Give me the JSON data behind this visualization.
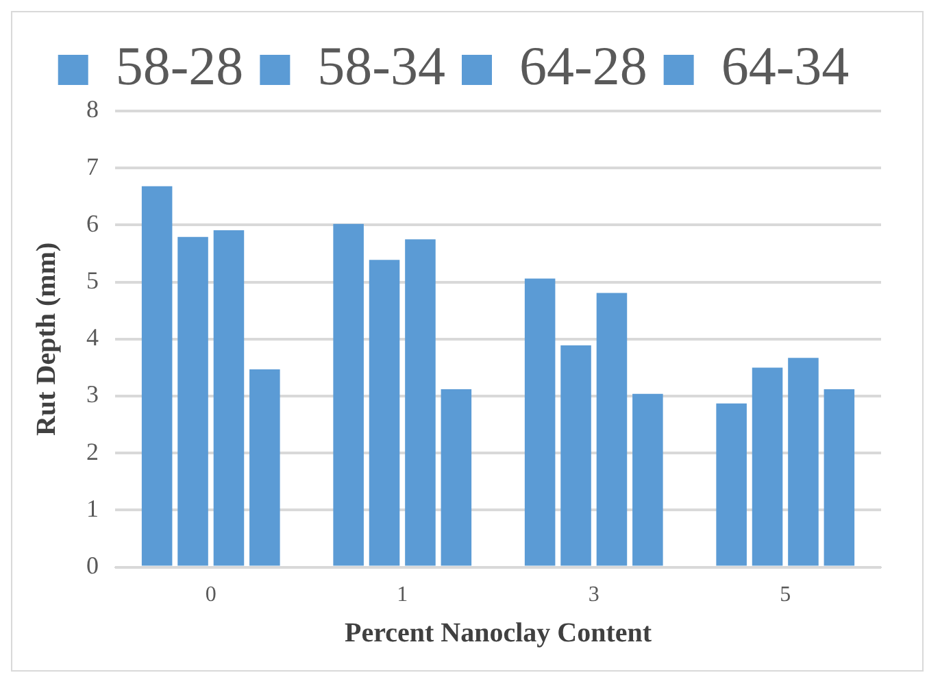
{
  "chart_data": {
    "type": "bar",
    "xlabel": "Percent Nanoclay Content",
    "ylabel": "Rut Depth (mm)",
    "categories": [
      "0",
      "1",
      "3",
      "5"
    ],
    "series": [
      {
        "name": "58-28",
        "color": "#5b9bd5",
        "values": [
          6.68,
          6.02,
          5.06,
          2.87
        ]
      },
      {
        "name": "58-34",
        "color": "#5b9bd5",
        "values": [
          5.79,
          5.39,
          3.89,
          3.5
        ]
      },
      {
        "name": "64-28",
        "color": "#5b9bd5",
        "values": [
          5.91,
          5.75,
          4.81,
          3.67
        ]
      },
      {
        "name": "64-34",
        "color": "#5b9bd5",
        "values": [
          3.47,
          3.12,
          3.04,
          3.12
        ]
      }
    ],
    "ylim": [
      0,
      8
    ],
    "yticks": [
      0,
      1,
      2,
      3,
      4,
      5,
      6,
      7,
      8
    ],
    "grid": "y",
    "legend": "top"
  }
}
